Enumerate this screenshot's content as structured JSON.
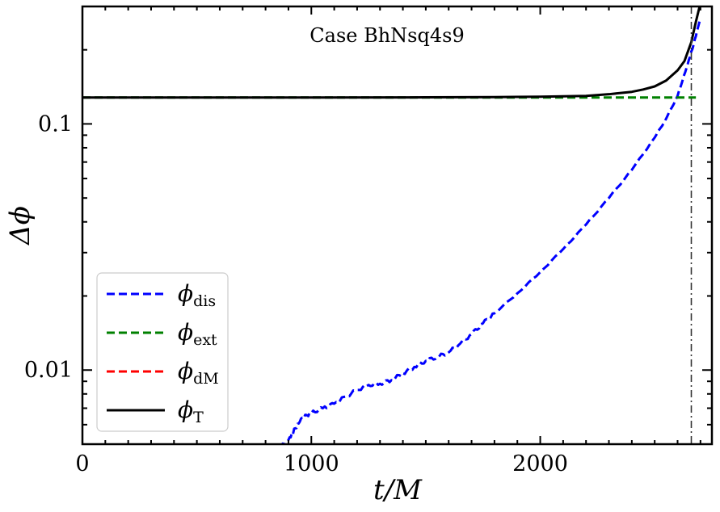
{
  "chart_data": {
    "type": "line",
    "annotation": "Case BhNsq4s9",
    "xlabel": "t/M",
    "ylabel": "Δϕ",
    "yscale": "log",
    "xlim": [
      0,
      2750
    ],
    "ylim": [
      0.005,
      0.3
    ],
    "x_ticks": [
      {
        "value": 0,
        "label": "0"
      },
      {
        "value": 1000,
        "label": "1000"
      },
      {
        "value": 2000,
        "label": "2000"
      }
    ],
    "y_ticks": [
      {
        "value": 0.01,
        "label": "0.01"
      },
      {
        "value": 0.1,
        "label": "0.1"
      }
    ],
    "vline": {
      "x": 2660,
      "style": "dash-dot",
      "color": "#333333"
    },
    "grid": false,
    "legend_position": "lower-left",
    "series": [
      {
        "name": "ϕ_dis",
        "base": "ϕ",
        "sub": "dis",
        "color": "#0000ff",
        "style": "dashed",
        "x": [
          870,
          900,
          930,
          960,
          1000,
          1050,
          1100,
          1150,
          1200,
          1250,
          1300,
          1350,
          1400,
          1450,
          1500,
          1550,
          1600,
          1650,
          1700,
          1750,
          1800,
          1900,
          2000,
          2100,
          2200,
          2300,
          2400,
          2500,
          2550,
          2600,
          2640,
          2670,
          2700
        ],
        "y": [
          0.0049,
          0.0052,
          0.0058,
          0.0064,
          0.0067,
          0.007,
          0.0073,
          0.0078,
          0.0083,
          0.0087,
          0.0088,
          0.0091,
          0.0097,
          0.0103,
          0.0109,
          0.0113,
          0.0118,
          0.0128,
          0.014,
          0.0155,
          0.017,
          0.0205,
          0.025,
          0.031,
          0.039,
          0.05,
          0.065,
          0.088,
          0.105,
          0.13,
          0.17,
          0.21,
          0.27
        ]
      },
      {
        "name": "ϕ_ext",
        "base": "ϕ",
        "sub": "ext",
        "color": "#008000",
        "style": "dashed",
        "x": [
          0,
          2680
        ],
        "y": [
          0.128,
          0.128
        ]
      },
      {
        "name": "ϕ_dM",
        "base": "ϕ",
        "sub": "dM",
        "color": "#ff0000",
        "style": "dashed",
        "x": [],
        "y": []
      },
      {
        "name": "ϕ_T",
        "base": "ϕ",
        "sub": "T",
        "color": "#000000",
        "style": "solid",
        "x": [
          0,
          500,
          1000,
          1500,
          1800,
          2000,
          2100,
          2200,
          2300,
          2400,
          2450,
          2500,
          2550,
          2600,
          2630,
          2660,
          2680,
          2700,
          2720
        ],
        "y": [
          0.128,
          0.128,
          0.128,
          0.1282,
          0.1285,
          0.129,
          0.1295,
          0.13,
          0.132,
          0.135,
          0.138,
          0.142,
          0.15,
          0.165,
          0.18,
          0.215,
          0.26,
          0.31,
          0.36
        ]
      }
    ]
  }
}
